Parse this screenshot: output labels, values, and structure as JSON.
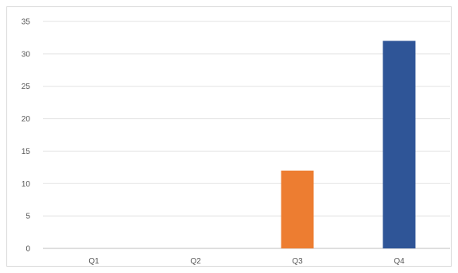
{
  "chart_data": {
    "type": "bar",
    "title": "",
    "xlabel": "",
    "ylabel": "",
    "categories": [
      "Q1",
      "Q2",
      "Q3",
      "Q4"
    ],
    "values": [
      0,
      0,
      12,
      32
    ],
    "bar_colors": [
      "#ED7D31",
      "#ED7D31",
      "#ED7D31",
      "#2F5597"
    ],
    "ylim": [
      0,
      35
    ],
    "yticks": [
      0,
      5,
      10,
      15,
      20,
      25,
      30,
      35
    ],
    "grid": true,
    "legend": "none"
  }
}
